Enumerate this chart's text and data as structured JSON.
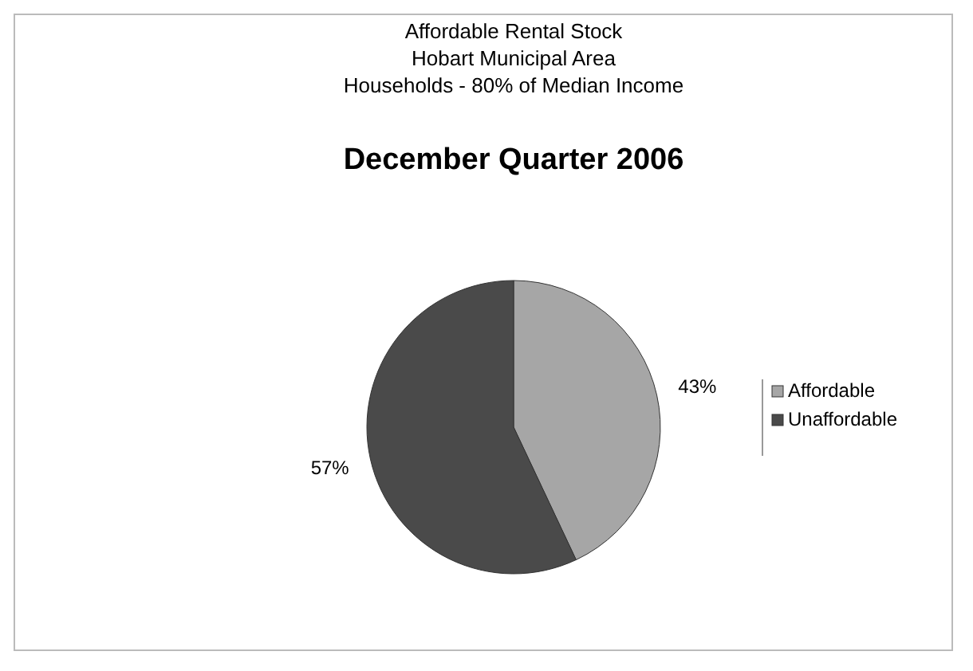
{
  "chart_data": {
    "type": "pie",
    "title": "Affordable Rental Stock\nHobart Municipal Area\nHouseholds - 80% of Median Income",
    "subtitle": "December Quarter 2006",
    "categories": [
      "Affordable",
      "Unaffordable"
    ],
    "values": [
      43,
      57
    ],
    "colors": [
      "#a6a6a6",
      "#4a4a4a"
    ],
    "value_labels": [
      "43%",
      "57%"
    ],
    "legend": "right"
  }
}
